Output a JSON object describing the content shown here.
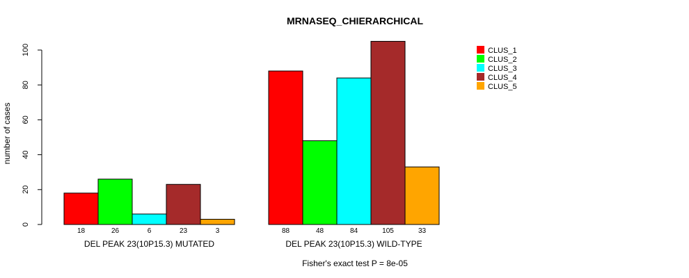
{
  "chart_data": {
    "type": "bar",
    "title": "MRNASEQ_CHIERARCHICAL",
    "xlabel": "",
    "ylabel": "number of cases",
    "ylim": [
      0,
      105
    ],
    "yticks": [
      0,
      20,
      40,
      60,
      80,
      100
    ],
    "grid": false,
    "legend_position": "top-right",
    "series_names": [
      "CLUS_1",
      "CLUS_2",
      "CLUS_3",
      "CLUS_4",
      "CLUS_5"
    ],
    "colors": [
      "#FF0000",
      "#00FF00",
      "#00FFFF",
      "#A52A2A",
      "#FFA500"
    ],
    "groups": [
      {
        "label": "DEL PEAK 23(10P15.3) MUTATED",
        "values": [
          18,
          26,
          6,
          23,
          3
        ]
      },
      {
        "label": "DEL PEAK 23(10P15.3) WILD-TYPE",
        "values": [
          88,
          48,
          84,
          105,
          33
        ]
      }
    ],
    "footnote": "Fisher's exact test P = 8e-05"
  }
}
